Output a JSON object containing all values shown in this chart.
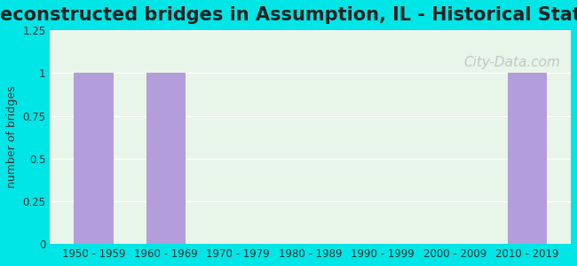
{
  "title": "Reconstructed bridges in Assumption, IL - Historical Statistics",
  "categories": [
    "1950 - 1959",
    "1960 - 1969",
    "1970 - 1979",
    "1980 - 1989",
    "1990 - 1999",
    "2000 - 2009",
    "2010 - 2019"
  ],
  "values": [
    1,
    1,
    0,
    0,
    0,
    0,
    1
  ],
  "bar_color": "#b39ddb",
  "background_outer": "#00e5e5",
  "background_inner": "#e8f5e9",
  "ylabel": "number of bridges",
  "ylim": [
    0,
    1.25
  ],
  "yticks": [
    0,
    0.25,
    0.5,
    0.75,
    1,
    1.25
  ],
  "title_fontsize": 15,
  "watermark": "City-Data.com",
  "watermark_color": "#aaaaaa"
}
